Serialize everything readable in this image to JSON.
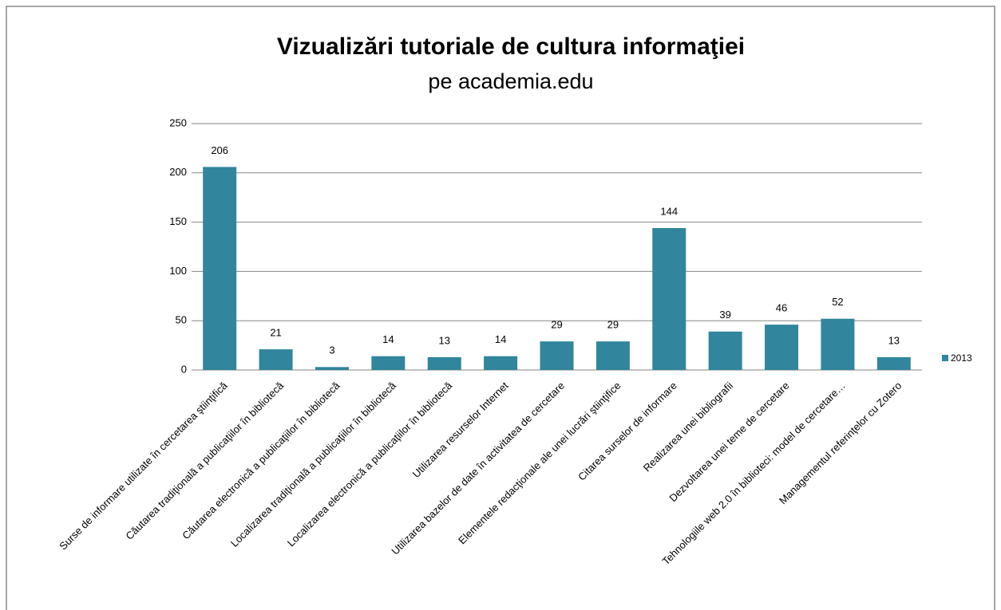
{
  "chart_data": {
    "type": "bar",
    "title": "Vizualizări tutoriale de cultura informaţiei",
    "subtitle": "pe academia.edu",
    "categories": [
      "Surse de informare utilizate în cercetarea ştiinţifică",
      "Căutarea tradiţională a publicaţiilor în bibliotecă",
      "Căutarea electronică a publicaţiilor în bibliotecă",
      "Localizarea tradiţională a publicaţiilor în bibliotecă",
      "Localizarea electronică a publicaţiilor în bibliotecă",
      "Utilizarea resurselor Internet",
      "Utilizarea bazelor de date în activitatea de cercetare",
      "Elementele redacţionale ale unei lucrări ştiinţifice",
      "Citarea surselor de informare",
      "Realizarea unei bibliografii",
      "Dezvoltarea unei teme de cercetare",
      "Tehnologiile web 2.0 în biblioteci: model de cercetare…",
      "Managementul referinţelor cu Zotero"
    ],
    "series": [
      {
        "name": "2013",
        "color": "#31859c",
        "values": [
          206,
          21,
          3,
          14,
          13,
          14,
          29,
          29,
          144,
          39,
          46,
          52,
          13
        ]
      }
    ],
    "ylim": [
      0,
      250
    ],
    "yticks": [
      0,
      50,
      100,
      150,
      200,
      250
    ],
    "grid": true,
    "legend": "right"
  }
}
